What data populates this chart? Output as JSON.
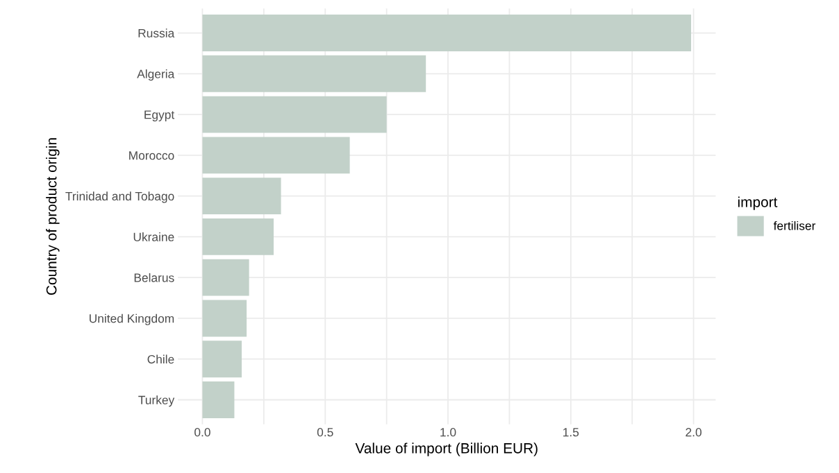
{
  "chart_data": {
    "type": "bar",
    "orientation": "horizontal",
    "xlabel": "Value of import (Billion EUR)",
    "ylabel": "Country of product origin",
    "legend_title": "import",
    "categories": [
      "Russia",
      "Algeria",
      "Egypt",
      "Morocco",
      "Trinidad and Tobago",
      "Ukraine",
      "Belarus",
      "United Kingdom",
      "Chile",
      "Turkey"
    ],
    "series": [
      {
        "name": "fertiliser",
        "color": "#c2d1c9",
        "values": [
          1.99,
          0.91,
          0.75,
          0.6,
          0.32,
          0.29,
          0.19,
          0.18,
          0.16,
          0.13
        ]
      }
    ],
    "xlim": [
      -0.1,
      2.09
    ],
    "xticks": [
      "0.0",
      {
        "value": 0.25,
        "label": null
      },
      {
        "value": 0.5,
        "label": "0.5"
      },
      {
        "value": 0.75,
        "label": null
      },
      {
        "value": 1.0,
        "label": "1.0"
      },
      {
        "value": 1.25,
        "label": null
      },
      {
        "value": 1.5,
        "label": "1.5"
      },
      {
        "value": 1.75,
        "label": null
      },
      {
        "value": 2.0,
        "label": "2.0"
      }
    ],
    "grid": true,
    "legend": "right"
  }
}
